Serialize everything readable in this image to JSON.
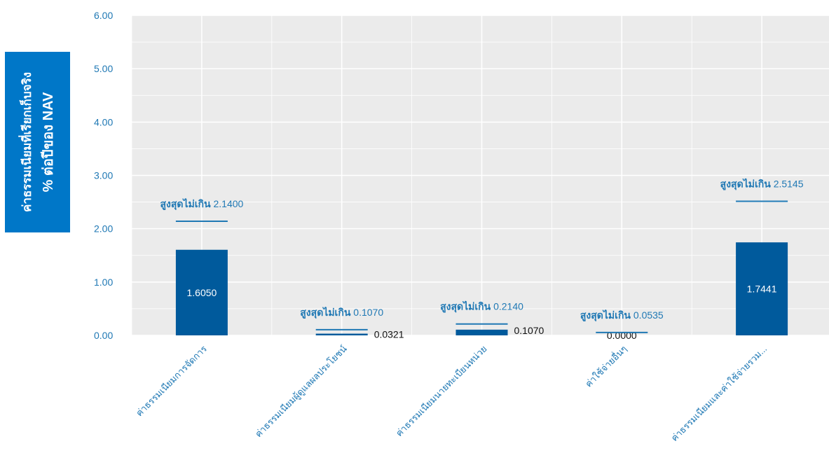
{
  "y_axis_title": {
    "line1": "ค่าธรรมเนียมที่เรียกเก็บจริง",
    "line2": "% ต่อปีของ NAV"
  },
  "chart_data": {
    "type": "bar",
    "categories": [
      "ค่าธรรมเนียมการจัดการ",
      "ค่าธรรมเนียมผู้ดูแลผลประโยชน์",
      "ค่าธรรมเนียมนายทะเบียนหน่วย",
      "ค่าใช้จ่ายอื่นๆ",
      "ค่าธรรมเนียมและค่าใช้จ่ายรวม..."
    ],
    "series": [
      {
        "values": [
          1.605,
          0.0321,
          0.107,
          0.0,
          1.7441
        ]
      }
    ],
    "value_labels": [
      "1.6050",
      "0.0321",
      "0.1070",
      "0.0000",
      "1.7441"
    ],
    "max_values": [
      2.14,
      0.107,
      0.214,
      0.0535,
      2.5145
    ],
    "max_prefix": "สูงสุดไม่เกิน",
    "max_labels": [
      "2.1400",
      "0.1070",
      "0.2140",
      "0.0535",
      "2.5145"
    ],
    "y_ticks": [
      "0.00",
      "1.00",
      "2.00",
      "3.00",
      "4.00",
      "5.00",
      "6.00"
    ],
    "ylim": [
      0,
      6
    ],
    "grid": true,
    "colors": {
      "bar": "#005a9c",
      "max_line": "#1f78b4",
      "plot_bg": "#ebebeb",
      "grid": "#ffffff",
      "accent": "#0077c8"
    }
  }
}
